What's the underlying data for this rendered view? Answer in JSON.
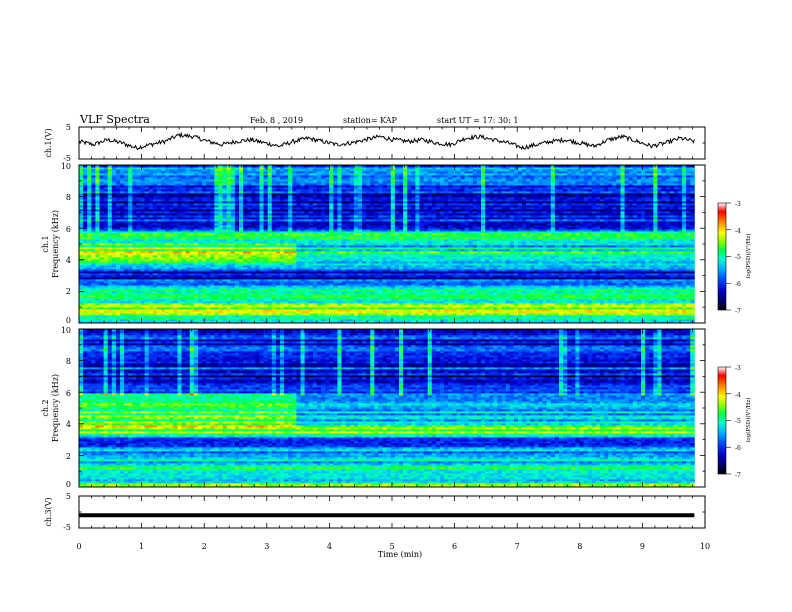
{
  "header": {
    "title": "VLF Spectra",
    "date": "Feb. 8 , 2019",
    "station": "station= KAP",
    "start": "start UT = 17: 30: 1"
  },
  "chart_data": [
    {
      "type": "line",
      "name": "ch1-voltage",
      "ylabel": "ch.1(V)",
      "ylim": [
        -5,
        5
      ],
      "yticks": [
        "5",
        "-5"
      ],
      "xlim": [
        0,
        10
      ],
      "data_extent_min": 9.83,
      "values_min": [
        0.5,
        -0.5,
        1.0,
        0.0,
        -1.5,
        -0.5,
        0.5,
        2.5,
        2.0,
        0.5,
        -0.5,
        0.5,
        1.0,
        0.0,
        -1.0,
        0.5,
        1.5,
        0.5,
        -0.5,
        0.0,
        1.0,
        2.0,
        1.0,
        0.5,
        1.0,
        0.0,
        -0.5,
        1.5,
        2.0,
        1.0,
        0.0,
        -1.5,
        -0.5,
        0.5,
        1.0,
        0.0,
        -1.0,
        1.0,
        2.0,
        0.5,
        -1.0,
        0.0,
        1.5,
        0.5
      ],
      "color": "#000000"
    },
    {
      "type": "heatmap",
      "name": "ch1-spectrogram",
      "ylabel": "ch.1",
      "ylabel2": "Frequency (kHz)",
      "ylim": [
        0,
        10
      ],
      "yticks": [
        "0",
        "2",
        "4",
        "6",
        "8",
        "10"
      ],
      "xlim": [
        0,
        10
      ],
      "colorbar": {
        "label": "log(PSD)(V²/Hz)",
        "range": [
          -7,
          -3
        ],
        "ticks": [
          "-3",
          "-4",
          "-5",
          "-6",
          "-7"
        ],
        "colors": [
          "#000000",
          "#000066",
          "#0000cc",
          "#0044ff",
          "#00aaff",
          "#00ffcc",
          "#00ff44",
          "#88ff00",
          "#ffff00",
          "#ff8800",
          "#ff0000",
          "#ffffff"
        ]
      },
      "freq_profile_khz": [
        0,
        0.5,
        1,
        1.5,
        2,
        2.5,
        3,
        3.5,
        4,
        4.5,
        5,
        5.5,
        6,
        6.5,
        7,
        7.5,
        8,
        8.5,
        9,
        9.5,
        10
      ],
      "level_log_psd": [
        -5.5,
        -4.6,
        -4.4,
        -5.0,
        -4.7,
        -5.6,
        -6.4,
        -5.8,
        -5.1,
        -4.9,
        -5.6,
        -4.8,
        -5.9,
        -6.0,
        -6.3,
        -6.4,
        -6.1,
        -6.3,
        -5.9,
        -5.8,
        -5.7
      ],
      "enhanced_band_khz": [
        3.8,
        5.0
      ],
      "enhanced_until_min": 3.5
    },
    {
      "type": "heatmap",
      "name": "ch2-spectrogram",
      "ylabel": "ch.2",
      "ylabel2": "Frequency (kHz)",
      "ylim": [
        0,
        10
      ],
      "yticks": [
        "0",
        "2",
        "4",
        "6",
        "8",
        "10"
      ],
      "xlim": [
        0,
        10
      ],
      "colorbar": {
        "label": "log(PSD)(V²/Hz)",
        "range": [
          -7,
          -3
        ],
        "ticks": [
          "-3",
          "-4",
          "-5",
          "-6",
          "-7"
        ],
        "colors": [
          "#000000",
          "#000066",
          "#0000cc",
          "#0044ff",
          "#00aaff",
          "#00ffcc",
          "#00ff44",
          "#88ff00",
          "#ffff00",
          "#ff8800",
          "#ff0000",
          "#ffffff"
        ]
      },
      "freq_profile_khz": [
        0,
        0.5,
        1,
        1.5,
        2,
        2.5,
        3,
        3.5,
        4,
        4.5,
        5,
        5.5,
        6,
        6.5,
        7,
        7.5,
        8,
        8.5,
        9,
        9.5,
        10
      ],
      "level_log_psd": [
        -4.5,
        -5.2,
        -5.0,
        -5.3,
        -5.4,
        -5.6,
        -6.2,
        -4.6,
        -5.0,
        -5.4,
        -5.6,
        -5.5,
        -6.1,
        -6.0,
        -6.3,
        -6.0,
        -6.2,
        -6.1,
        -6.0,
        -6.1,
        -6.2
      ],
      "enhanced_band_khz": [
        3.8,
        6.0
      ],
      "enhanced_until_min": 3.5
    },
    {
      "type": "line",
      "name": "ch3-voltage",
      "ylabel": "ch.3(V)",
      "ylim": [
        -5,
        5
      ],
      "yticks": [
        "5",
        "-5"
      ],
      "xlim": [
        0,
        10
      ],
      "data_extent_min": 9.83,
      "values_min": [
        -1.0,
        -1.0
      ],
      "color": "#000000"
    }
  ],
  "xaxis": {
    "label": "Time (min)",
    "ticks": [
      "0",
      "1",
      "2",
      "3",
      "4",
      "5",
      "6",
      "7",
      "8",
      "9",
      "10"
    ]
  }
}
